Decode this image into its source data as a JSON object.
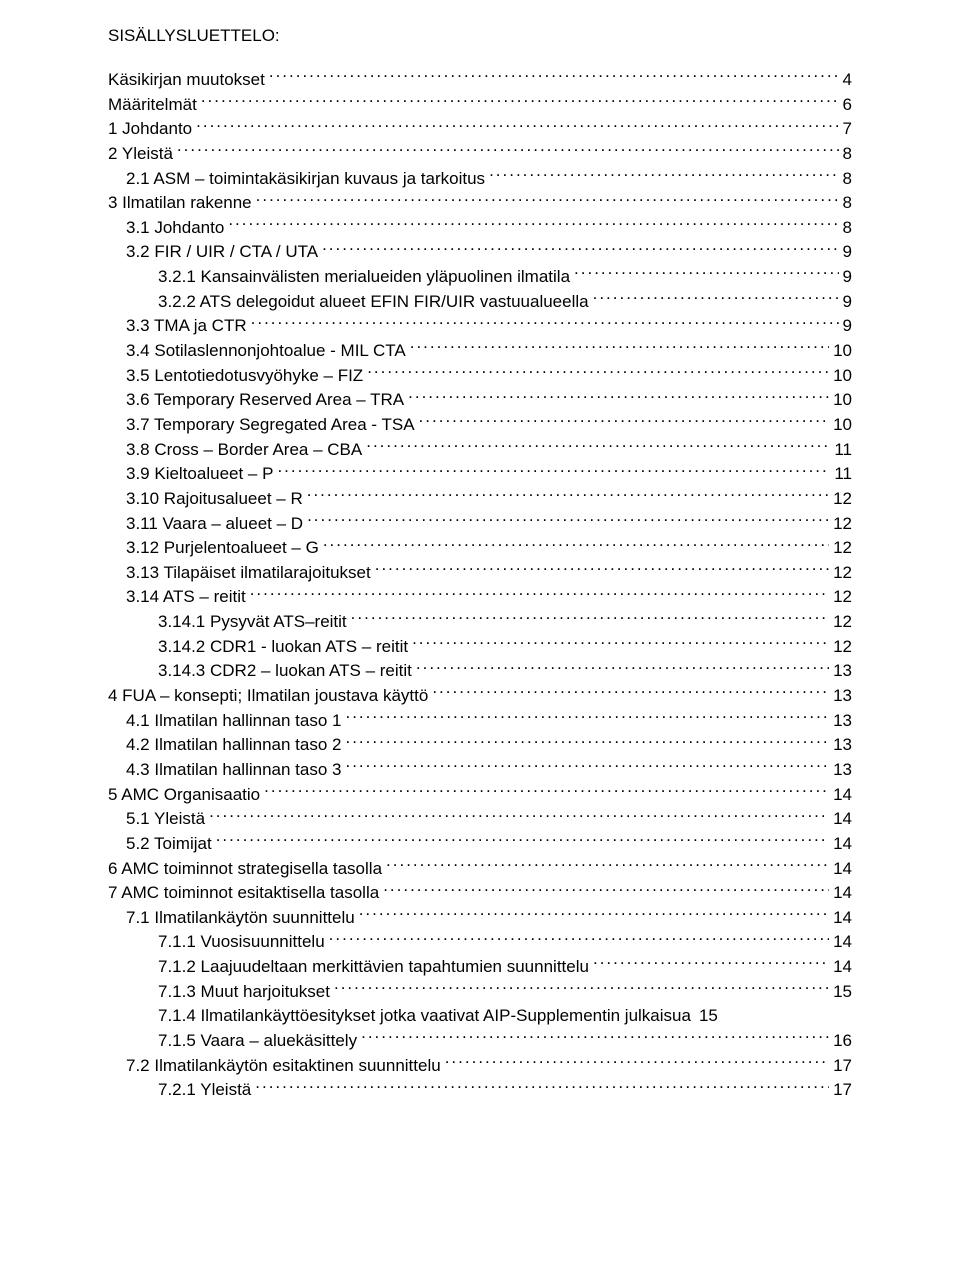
{
  "heading": "SISÄLLYSLUETTELO:",
  "toc": [
    {
      "indent": 0,
      "label": "Käsikirjan muutokset",
      "page": "4"
    },
    {
      "indent": 0,
      "label": "Määritelmät",
      "page": "6"
    },
    {
      "indent": 0,
      "label": "1   Johdanto",
      "page": "7"
    },
    {
      "indent": 0,
      "label": "2   Yleistä",
      "page": "8"
    },
    {
      "indent": 1,
      "label": "2.1   ASM – toimintakäsikirjan kuvaus ja tarkoitus",
      "page": "8"
    },
    {
      "indent": 0,
      "label": "3   Ilmatilan rakenne",
      "page": "8"
    },
    {
      "indent": 1,
      "label": "3.1   Johdanto",
      "page": "8"
    },
    {
      "indent": 1,
      "label": "3.2   FIR / UIR / CTA / UTA",
      "page": "9"
    },
    {
      "indent": 2,
      "label": "3.2.1 Kansainvälisten merialueiden yläpuolinen ilmatila",
      "page": "9"
    },
    {
      "indent": 2,
      "label": "3.2.2 ATS delegoidut alueet EFIN FIR/UIR vastuualueella",
      "page": "9"
    },
    {
      "indent": 1,
      "label": "3.3   TMA ja CTR",
      "page": "9"
    },
    {
      "indent": 1,
      "label": "3.4   Sotilaslennonjohtoalue - MIL CTA",
      "page": "10"
    },
    {
      "indent": 1,
      "label": "3.5   Lentotiedotusvyöhyke – FIZ",
      "page": "10"
    },
    {
      "indent": 1,
      "label": "3.6   Temporary Reserved Area – TRA",
      "page": "10"
    },
    {
      "indent": 1,
      "label": "3.7   Temporary Segregated Area - TSA",
      "page": "10"
    },
    {
      "indent": 1,
      "label": "3.8   Cross – Border Area – CBA",
      "page": "11"
    },
    {
      "indent": 1,
      "label": "3.9   Kieltoalueet – P",
      "page": "11"
    },
    {
      "indent": 1,
      "label": "3.10  Rajoitusalueet – R",
      "page": "12"
    },
    {
      "indent": 1,
      "label": "3.11  Vaara – alueet – D",
      "page": "12"
    },
    {
      "indent": 1,
      "label": "3.12  Purjelentoalueet – G",
      "page": "12"
    },
    {
      "indent": 1,
      "label": "3.13  Tilapäiset  ilmatilarajoitukset",
      "page": "12"
    },
    {
      "indent": 1,
      "label": "3.14  ATS – reitit",
      "page": "12"
    },
    {
      "indent": 2,
      "label": "3.14.1 Pysyvät ATS–reitit",
      "page": "12"
    },
    {
      "indent": 2,
      "label": "3.14.2 CDR1 - luokan ATS – reitit",
      "page": "12"
    },
    {
      "indent": 2,
      "label": "3.14.3 CDR2 – luokan ATS – reitit",
      "page": "13"
    },
    {
      "indent": 0,
      "label": "4   FUA – konsepti; Ilmatilan joustava käyttö",
      "page": "13"
    },
    {
      "indent": 1,
      "label": "4.1   Ilmatilan hallinnan taso 1",
      "page": "13"
    },
    {
      "indent": 1,
      "label": "4.2   Ilmatilan hallinnan taso 2",
      "page": "13"
    },
    {
      "indent": 1,
      "label": "4.3   Ilmatilan hallinnan taso 3",
      "page": "13"
    },
    {
      "indent": 0,
      "label": "5   AMC Organisaatio",
      "page": "14"
    },
    {
      "indent": 1,
      "label": "5.1   Yleistä",
      "page": "14"
    },
    {
      "indent": 1,
      "label": "5.2   Toimijat",
      "page": "14"
    },
    {
      "indent": 0,
      "label": "6   AMC toiminnot strategisella tasolla",
      "page": "14"
    },
    {
      "indent": 0,
      "label": "7   AMC toiminnot esitaktisella tasolla",
      "page": "14"
    },
    {
      "indent": 1,
      "label": "7.1   Ilmatilankäytön suunnittelu",
      "page": "14"
    },
    {
      "indent": 2,
      "label": "7.1.1 Vuosisuunnittelu",
      "page": "14"
    },
    {
      "indent": 2,
      "label": "7.1.2 Laajuudeltaan merkittävien tapahtumien suunnittelu",
      "page": "14"
    },
    {
      "indent": 2,
      "label": "7.1.3 Muut harjoitukset",
      "page": "15"
    },
    {
      "indent": 2,
      "label": "7.1.4 Ilmatilankäyttöesitykset jotka vaativat AIP-Supplementin julkaisua",
      "page": "15",
      "noleader": true
    },
    {
      "indent": 2,
      "label": "7.1.5 Vaara – aluekäsittely",
      "page": "16"
    },
    {
      "indent": 1,
      "label": "7.2   Ilmatilankäytön esitaktinen suunnittelu",
      "page": "17"
    },
    {
      "indent": 2,
      "label": "7.2.1 Yleistä",
      "page": "17"
    }
  ]
}
